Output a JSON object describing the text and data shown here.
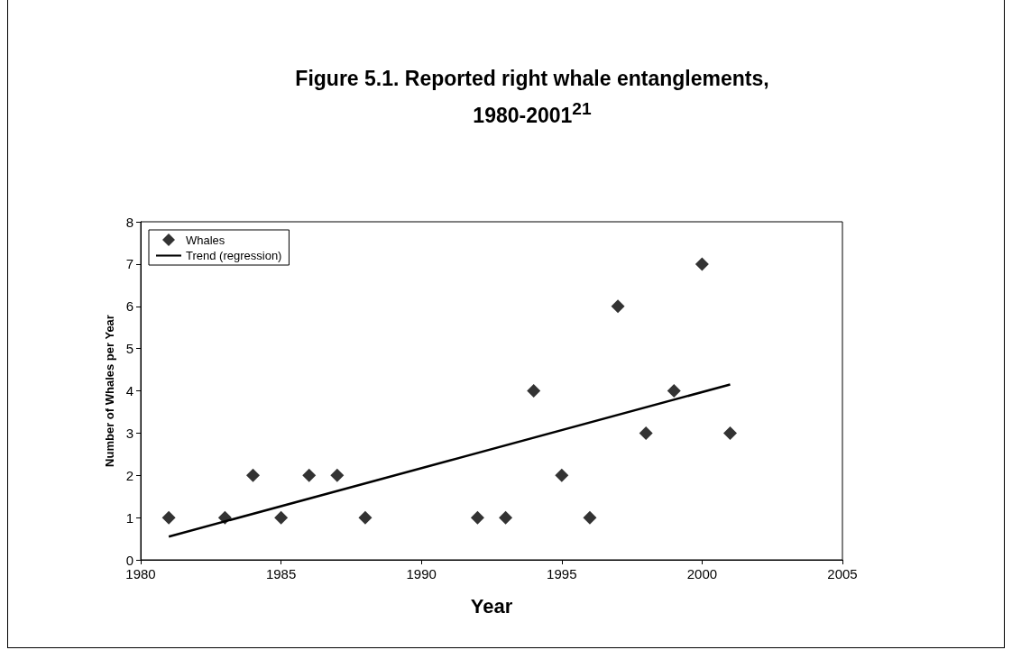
{
  "chart_data": {
    "type": "scatter",
    "title": "Figure 5.1. Reported right whale entanglements, 1980-2001$^{21}$",
    "xlabel": "Year",
    "ylabel": "Number of Whales per Year",
    "series": [
      {
        "name": "Whales",
        "color": "#000000",
        "marker": "diamond",
        "x": [
          1981,
          1983,
          1984,
          1985,
          1986,
          1987,
          1988,
          1992,
          1993,
          1994,
          1995,
          1996,
          1997,
          1998,
          1999,
          2000,
          2001
        ],
        "values": [
          1,
          1,
          2,
          1,
          2,
          2,
          1,
          1,
          1,
          4,
          2,
          1,
          6,
          3,
          4,
          7,
          3
        ]
      },
      {
        "name": "Trend (regression)",
        "type": "line",
        "color": "#000000",
        "marker": "none",
        "line_style": "solid",
        "x": [
          1981,
          2001
        ],
        "values": [
          0.55,
          4.15
        ]
      }
    ],
    "xlim": [
      1980,
      2005
    ],
    "xticks": [
      1980,
      1985,
      1990,
      1995,
      2000,
      2005
    ],
    "ylim": [
      0,
      8
    ],
    "yticks": [
      0,
      1,
      2,
      3,
      4,
      5,
      6,
      7,
      8
    ],
    "grid": false,
    "legend": "top left"
  }
}
